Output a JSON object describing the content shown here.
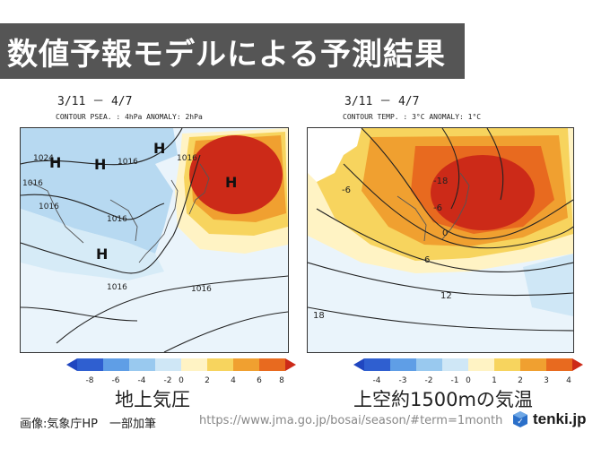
{
  "title": "数値予報モデルによる予測結果",
  "left_map": {
    "date_range": "3/11 － 4/7",
    "contour_label": "CONTOUR PSEA. :  4hPa    ANOMALY:  2hPa",
    "isobars": [
      "1024",
      "1016",
      "1016",
      "1016",
      "1016",
      "1016",
      "1016",
      "1016"
    ],
    "pressure_marks": [
      "H",
      "H",
      "H",
      "H",
      "H"
    ],
    "colorbar_ticks": [
      "-8",
      "-6",
      "-4",
      "-2",
      "0",
      "2",
      "4",
      "6",
      "8"
    ],
    "name": "地上気圧"
  },
  "right_map": {
    "date_range": "3/11 － 4/7",
    "contour_label": "CONTOUR TEMP. :  3°C    ANOMALY:  1°C",
    "isotherms": [
      "-6",
      "-18",
      "-6",
      "0",
      "6",
      "12",
      "18"
    ],
    "colorbar_ticks": [
      "-4",
      "-3",
      "-2",
      "-1",
      "0",
      "1",
      "2",
      "3",
      "4"
    ],
    "name": "上空約1500mの気温"
  },
  "footer": {
    "credit": "画像:気象庁HP　一部加筆",
    "url": "https://www.jma.go.jp/bosai/season/#term=1month"
  },
  "logo": {
    "text": "tenki.jp"
  },
  "colors": {
    "title_bg": "#555555",
    "anom_neg": [
      "#2f5fd0",
      "#5f9ee6",
      "#99c9ef",
      "#cfe7f6"
    ],
    "anom_pos": [
      "#fff3c4",
      "#f7d45e",
      "#f0a030",
      "#e86a1f",
      "#cc2a18"
    ]
  }
}
